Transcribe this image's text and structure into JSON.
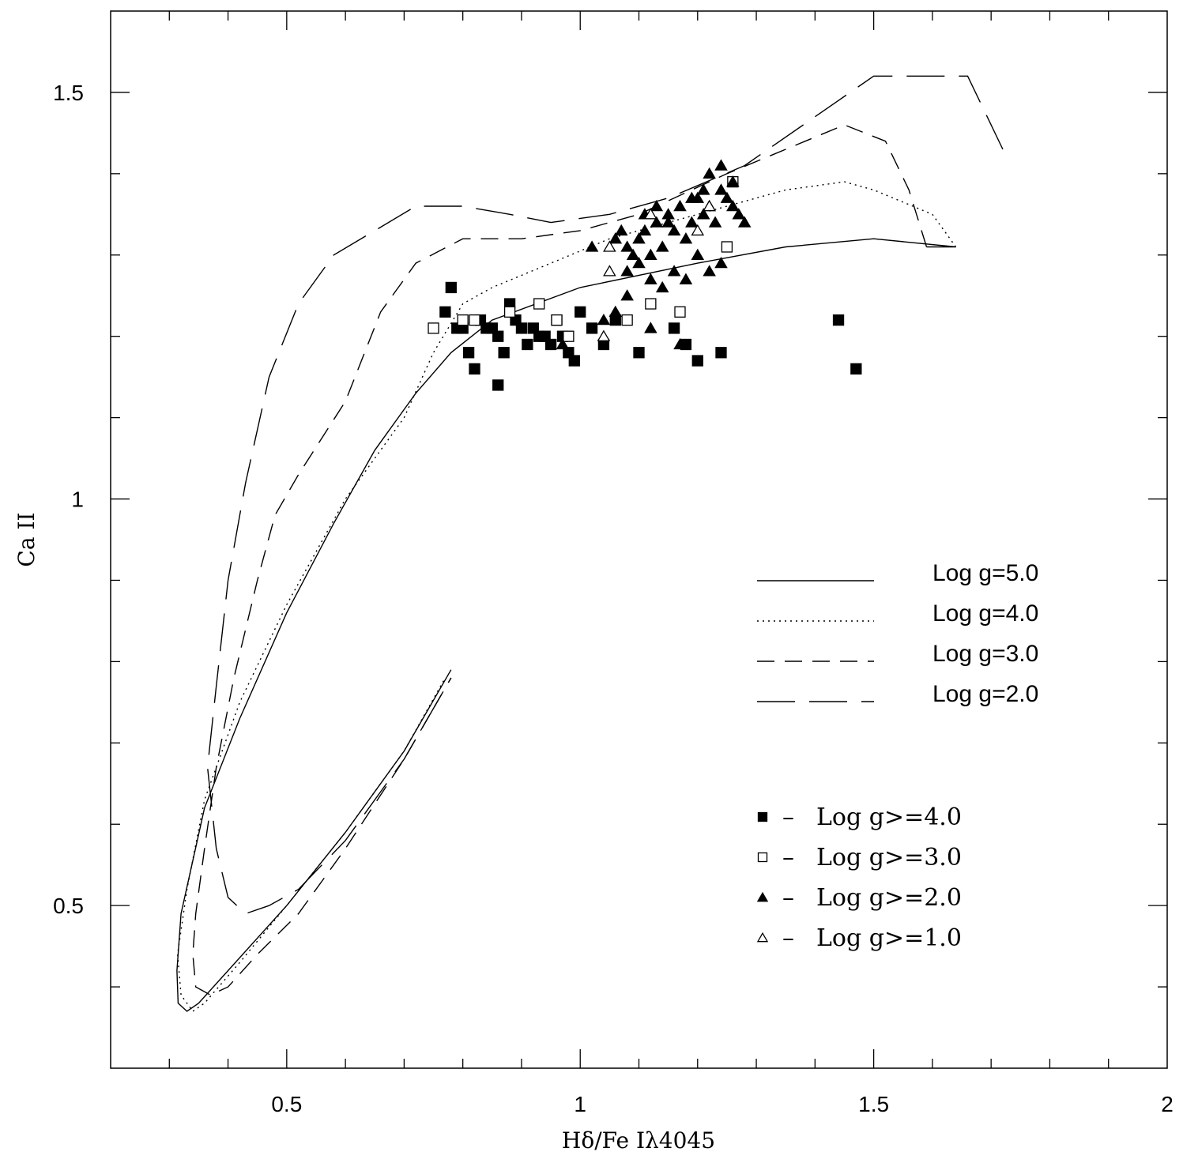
{
  "chart_data": {
    "type": "scatter",
    "title": "",
    "xlabel": "Hδ/Fe Iλ4045",
    "ylabel": "Ca II",
    "xlim": [
      0.2,
      2.0
    ],
    "ylim": [
      0.3,
      1.6
    ],
    "x_ticks": [
      0.5,
      1,
      1.5,
      2
    ],
    "x_tick_labels": [
      "0.5",
      "1",
      "1.5",
      "2"
    ],
    "y_ticks": [
      0.5,
      1,
      1.5
    ],
    "y_tick_labels": [
      "0.5",
      "1",
      "1.5"
    ],
    "grid": false,
    "line_legend": [
      {
        "label": "Log g=5.0",
        "dash": "solid"
      },
      {
        "label": "Log g=4.0",
        "dash": "dotted"
      },
      {
        "label": "Log g=3.0",
        "dash": "dashed"
      },
      {
        "label": "Log g=2.0",
        "dash": "longdash"
      }
    ],
    "marker_legend": [
      {
        "label": "Log g>=4.0",
        "marker": "square-filled"
      },
      {
        "label": "Log g>=3.0",
        "marker": "square-open"
      },
      {
        "label": "Log g>=2.0",
        "marker": "triangle-filled"
      },
      {
        "label": "Log g>=1.0",
        "marker": "triangle-open"
      }
    ],
    "legend_dash_symbol": "–",
    "lines": [
      {
        "label": "Log g=5.0",
        "dash": "solid",
        "points": [
          [
            1.59,
            1.31
          ],
          [
            1.64,
            1.31
          ],
          [
            1.5,
            1.32
          ],
          [
            1.35,
            1.31
          ],
          [
            1.2,
            1.29
          ],
          [
            1.0,
            1.26
          ],
          [
            0.85,
            1.22
          ],
          [
            0.78,
            1.18
          ],
          [
            0.72,
            1.13
          ],
          [
            0.65,
            1.06
          ],
          [
            0.58,
            0.97
          ],
          [
            0.5,
            0.86
          ],
          [
            0.42,
            0.73
          ],
          [
            0.36,
            0.62
          ],
          [
            0.32,
            0.49
          ],
          [
            0.313,
            0.42
          ],
          [
            0.315,
            0.38
          ],
          [
            0.33,
            0.37
          ],
          [
            0.35,
            0.38
          ],
          [
            0.4,
            0.42
          ],
          [
            0.5,
            0.5
          ],
          [
            0.6,
            0.59
          ],
          [
            0.7,
            0.69
          ],
          [
            0.78,
            0.79
          ]
        ]
      },
      {
        "label": "Log g=4.0",
        "dash": "dotted",
        "points": [
          [
            1.64,
            1.31
          ],
          [
            1.6,
            1.35
          ],
          [
            1.5,
            1.38
          ],
          [
            1.45,
            1.39
          ],
          [
            1.35,
            1.38
          ],
          [
            1.2,
            1.35
          ],
          [
            1.05,
            1.32
          ],
          [
            0.95,
            1.29
          ],
          [
            0.85,
            1.26
          ],
          [
            0.8,
            1.24
          ],
          [
            0.75,
            1.18
          ],
          [
            0.7,
            1.1
          ],
          [
            0.6,
            1.0
          ],
          [
            0.5,
            0.87
          ],
          [
            0.42,
            0.75
          ],
          [
            0.36,
            0.63
          ],
          [
            0.33,
            0.52
          ],
          [
            0.314,
            0.44
          ],
          [
            0.32,
            0.39
          ],
          [
            0.34,
            0.37
          ],
          [
            0.36,
            0.38
          ],
          [
            0.42,
            0.43
          ],
          [
            0.5,
            0.5
          ],
          [
            0.6,
            0.59
          ],
          [
            0.7,
            0.69
          ],
          [
            0.77,
            0.78
          ]
        ]
      },
      {
        "label": "Log g=3.0",
        "dash": "dashed",
        "points": [
          [
            1.59,
            1.31
          ],
          [
            1.56,
            1.38
          ],
          [
            1.52,
            1.44
          ],
          [
            1.45,
            1.46
          ],
          [
            1.35,
            1.43
          ],
          [
            1.25,
            1.4
          ],
          [
            1.1,
            1.35
          ],
          [
            1.0,
            1.33
          ],
          [
            0.9,
            1.32
          ],
          [
            0.8,
            1.32
          ],
          [
            0.72,
            1.29
          ],
          [
            0.66,
            1.23
          ],
          [
            0.6,
            1.12
          ],
          [
            0.52,
            1.03
          ],
          [
            0.48,
            0.98
          ],
          [
            0.45,
            0.9
          ],
          [
            0.41,
            0.78
          ],
          [
            0.38,
            0.67
          ],
          [
            0.36,
            0.57
          ],
          [
            0.345,
            0.49
          ],
          [
            0.34,
            0.44
          ],
          [
            0.345,
            0.4
          ],
          [
            0.37,
            0.39
          ],
          [
            0.4,
            0.4
          ],
          [
            0.45,
            0.44
          ],
          [
            0.52,
            0.49
          ],
          [
            0.6,
            0.57
          ],
          [
            0.7,
            0.68
          ],
          [
            0.78,
            0.78
          ]
        ]
      },
      {
        "label": "Log g=2.0",
        "dash": "longdash",
        "points": [
          [
            1.72,
            1.43
          ],
          [
            1.66,
            1.52
          ],
          [
            1.55,
            1.52
          ],
          [
            1.5,
            1.52
          ],
          [
            1.4,
            1.47
          ],
          [
            1.28,
            1.41
          ],
          [
            1.15,
            1.37
          ],
          [
            1.05,
            1.35
          ],
          [
            0.95,
            1.34
          ],
          [
            0.88,
            1.35
          ],
          [
            0.8,
            1.36
          ],
          [
            0.72,
            1.36
          ],
          [
            0.65,
            1.33
          ],
          [
            0.58,
            1.3
          ],
          [
            0.52,
            1.24
          ],
          [
            0.47,
            1.15
          ],
          [
            0.43,
            1.02
          ],
          [
            0.4,
            0.9
          ],
          [
            0.38,
            0.77
          ],
          [
            0.365,
            0.67
          ],
          [
            0.38,
            0.57
          ],
          [
            0.4,
            0.51
          ],
          [
            0.43,
            0.49
          ],
          [
            0.47,
            0.5
          ],
          [
            0.52,
            0.52
          ],
          [
            0.6,
            0.58
          ],
          [
            0.7,
            0.68
          ],
          [
            0.78,
            0.78
          ]
        ]
      }
    ],
    "series": [
      {
        "name": "Log g>=4.0",
        "marker": "square-filled",
        "points": [
          [
            0.78,
            1.26
          ],
          [
            0.77,
            1.23
          ],
          [
            0.79,
            1.21
          ],
          [
            0.8,
            1.21
          ],
          [
            0.81,
            1.18
          ],
          [
            0.83,
            1.22
          ],
          [
            0.84,
            1.21
          ],
          [
            0.85,
            1.21
          ],
          [
            0.86,
            1.2
          ],
          [
            0.87,
            1.18
          ],
          [
            0.88,
            1.24
          ],
          [
            0.89,
            1.22
          ],
          [
            0.9,
            1.21
          ],
          [
            0.91,
            1.19
          ],
          [
            0.92,
            1.21
          ],
          [
            0.93,
            1.2
          ],
          [
            0.94,
            1.2
          ],
          [
            0.95,
            1.19
          ],
          [
            0.96,
            1.22
          ],
          [
            0.97,
            1.2
          ],
          [
            0.98,
            1.18
          ],
          [
            0.99,
            1.17
          ],
          [
            1.0,
            1.23
          ],
          [
            1.02,
            1.21
          ],
          [
            1.04,
            1.19
          ],
          [
            1.06,
            1.22
          ],
          [
            1.1,
            1.18
          ],
          [
            1.16,
            1.21
          ],
          [
            1.18,
            1.19
          ],
          [
            1.2,
            1.17
          ],
          [
            1.24,
            1.18
          ],
          [
            1.44,
            1.22
          ],
          [
            1.47,
            1.16
          ],
          [
            0.82,
            1.16
          ],
          [
            0.86,
            1.14
          ]
        ]
      },
      {
        "name": "Log g>=3.0",
        "marker": "square-open",
        "points": [
          [
            0.75,
            1.21
          ],
          [
            0.8,
            1.22
          ],
          [
            0.82,
            1.22
          ],
          [
            0.88,
            1.23
          ],
          [
            0.93,
            1.24
          ],
          [
            0.96,
            1.22
          ],
          [
            0.98,
            1.2
          ],
          [
            1.08,
            1.22
          ],
          [
            1.12,
            1.24
          ],
          [
            1.17,
            1.23
          ],
          [
            1.26,
            1.39
          ],
          [
            1.25,
            1.31
          ]
        ]
      },
      {
        "name": "Log g>=2.0",
        "marker": "triangle-filled",
        "points": [
          [
            1.02,
            1.31
          ],
          [
            1.06,
            1.32
          ],
          [
            1.07,
            1.33
          ],
          [
            1.08,
            1.31
          ],
          [
            1.09,
            1.3
          ],
          [
            1.1,
            1.32
          ],
          [
            1.11,
            1.33
          ],
          [
            1.12,
            1.3
          ],
          [
            1.13,
            1.34
          ],
          [
            1.14,
            1.31
          ],
          [
            1.15,
            1.35
          ],
          [
            1.16,
            1.33
          ],
          [
            1.17,
            1.36
          ],
          [
            1.18,
            1.32
          ],
          [
            1.19,
            1.34
          ],
          [
            1.2,
            1.37
          ],
          [
            1.21,
            1.35
          ],
          [
            1.22,
            1.36
          ],
          [
            1.23,
            1.34
          ],
          [
            1.24,
            1.38
          ],
          [
            1.25,
            1.37
          ],
          [
            1.26,
            1.36
          ],
          [
            1.27,
            1.35
          ],
          [
            1.28,
            1.34
          ],
          [
            1.22,
            1.4
          ],
          [
            1.24,
            1.41
          ],
          [
            1.26,
            1.39
          ],
          [
            1.08,
            1.28
          ],
          [
            1.1,
            1.29
          ],
          [
            1.12,
            1.27
          ],
          [
            1.14,
            1.26
          ],
          [
            1.16,
            1.28
          ],
          [
            1.18,
            1.27
          ],
          [
            1.2,
            1.3
          ],
          [
            1.04,
            1.22
          ],
          [
            1.06,
            1.23
          ],
          [
            1.08,
            1.25
          ],
          [
            1.12,
            1.21
          ],
          [
            1.17,
            1.19
          ],
          [
            0.97,
            1.19
          ],
          [
            1.22,
            1.28
          ],
          [
            1.24,
            1.29
          ],
          [
            1.19,
            1.37
          ],
          [
            1.21,
            1.38
          ],
          [
            1.15,
            1.34
          ],
          [
            1.13,
            1.36
          ],
          [
            1.11,
            1.35
          ]
        ]
      },
      {
        "name": "Log g>=1.0",
        "marker": "triangle-open",
        "points": [
          [
            1.05,
            1.31
          ],
          [
            1.05,
            1.28
          ],
          [
            1.04,
            1.2
          ],
          [
            1.12,
            1.35
          ],
          [
            1.2,
            1.33
          ],
          [
            1.22,
            1.36
          ]
        ]
      }
    ]
  }
}
